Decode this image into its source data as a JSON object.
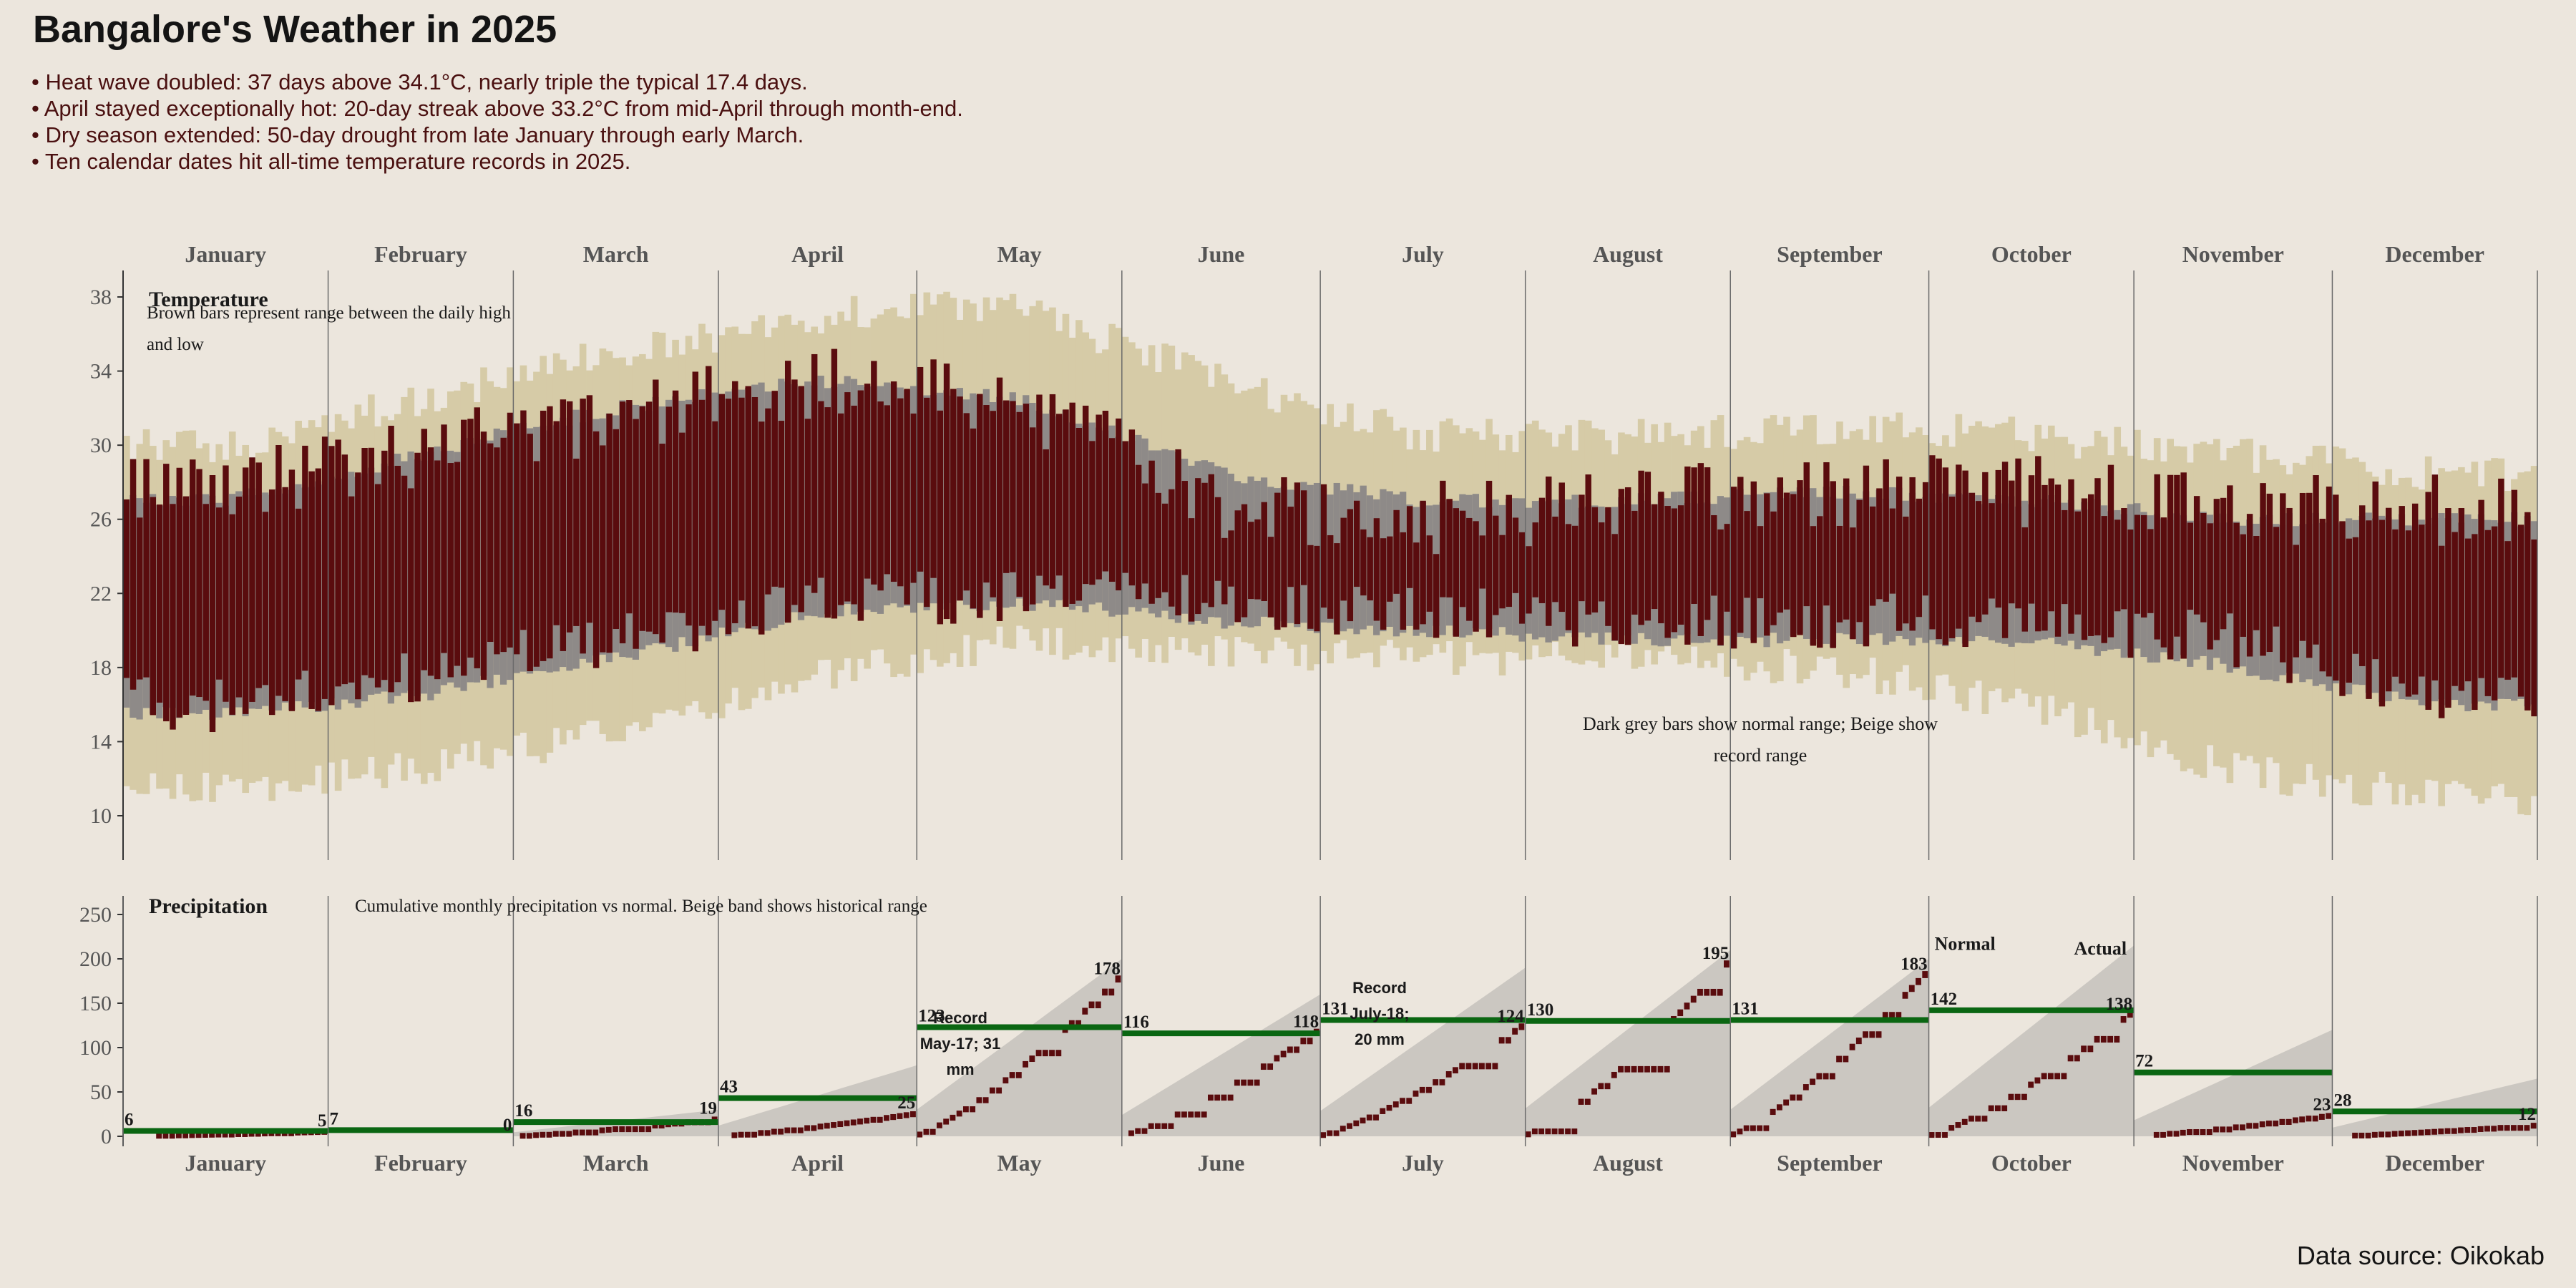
{
  "title": "Bangalore's Weather in 2025",
  "bullets": [
    "• Heat wave doubled: 37 days above 34.1°C, nearly triple the typical 17.4 days.",
    "• April stayed exceptionally hot: 20-day streak above 33.2°C from mid-April through month-end.",
    "• Dry season extended: 50-day drought from late January through early March.",
    "• Ten calendar dates hit all-time temperature records in 2025."
  ],
  "source": "Data source: Oikokab",
  "colors": {
    "background": "#ece6dd",
    "actual_range": "#5a0c0e",
    "normal_range": "#8e8a88",
    "record_range": "#d6cba7",
    "normal_precip": "#0a6612",
    "precip_band": "#cbc7c1",
    "grid_line": "#6b6b6b"
  },
  "chart_data": [
    {
      "type": "bar",
      "subtype": "range-bars",
      "panel": "Temperature",
      "title": "Temperature",
      "note": "Brown bars represent range between the daily high and low",
      "legend_note": "Dark grey bars show normal range; Beige show record range",
      "months": [
        "January",
        "February",
        "March",
        "April",
        "May",
        "June",
        "July",
        "August",
        "September",
        "October",
        "November",
        "December"
      ],
      "y_ticks": [
        10,
        14,
        18,
        22,
        26,
        30,
        34,
        38
      ],
      "ylim": [
        8,
        40
      ],
      "monthly_actual_high": [
        27.5,
        29.5,
        31.5,
        33.5,
        32.0,
        27.0,
        26.0,
        27.0,
        27.5,
        27.5,
        26.5,
        26.5
      ],
      "monthly_actual_low": [
        16.0,
        17.5,
        19.5,
        21.5,
        22.0,
        21.5,
        21.0,
        20.5,
        20.5,
        20.5,
        19.5,
        16.5
      ],
      "monthly_normal_high": [
        27.0,
        29.5,
        32.0,
        33.5,
        32.5,
        28.5,
        27.0,
        27.0,
        27.5,
        27.0,
        26.0,
        26.0
      ],
      "monthly_normal_low": [
        15.5,
        16.5,
        18.5,
        21.0,
        21.5,
        20.5,
        20.0,
        19.5,
        19.5,
        19.5,
        18.0,
        16.0
      ],
      "monthly_record_high": [
        30.0,
        32.5,
        35.0,
        37.0,
        37.5,
        33.5,
        30.5,
        30.5,
        31.0,
        30.5,
        29.5,
        28.5
      ],
      "monthly_record_low": [
        11.5,
        12.5,
        14.5,
        17.5,
        19.5,
        19.0,
        18.5,
        18.5,
        18.0,
        16.0,
        12.5,
        11.0
      ]
    },
    {
      "type": "line",
      "subtype": "cumulative-precipitation",
      "panel": "Precipitation",
      "title": "Precipitation",
      "note": "Cumulative monthly precipitation vs normal. Beige band shows historical range",
      "months": [
        "January",
        "February",
        "March",
        "April",
        "May",
        "June",
        "July",
        "August",
        "September",
        "October",
        "November",
        "December"
      ],
      "y_ticks": [
        0,
        50,
        100,
        150,
        200,
        250
      ],
      "ylim": [
        0,
        270
      ],
      "actual_total": [
        5,
        0,
        19,
        25,
        178,
        118,
        124,
        195,
        183,
        138,
        23,
        12
      ],
      "normal": [
        6,
        7,
        16,
        43,
        123,
        116,
        131,
        130,
        131,
        142,
        72,
        28
      ],
      "band_max": [
        0,
        0,
        30,
        80,
        200,
        160,
        190,
        210,
        200,
        215,
        120,
        65
      ],
      "labels": {
        "left": [
          "6",
          "7",
          "16",
          "43",
          "123",
          "116",
          "131",
          "130",
          "131",
          "142",
          "72",
          "28"
        ],
        "right": [
          "5",
          "0",
          "19",
          "25",
          "178",
          "118",
          "124",
          "195",
          "183",
          "138",
          "23",
          "12"
        ]
      },
      "annotations": [
        {
          "month": "May",
          "text": [
            "Record",
            "May-17; 31",
            "mm"
          ]
        },
        {
          "month": "July",
          "text": [
            "Record",
            "July-18;",
            "20 mm"
          ]
        }
      ],
      "legend": {
        "normal": "Normal",
        "actual": "Actual"
      }
    }
  ]
}
